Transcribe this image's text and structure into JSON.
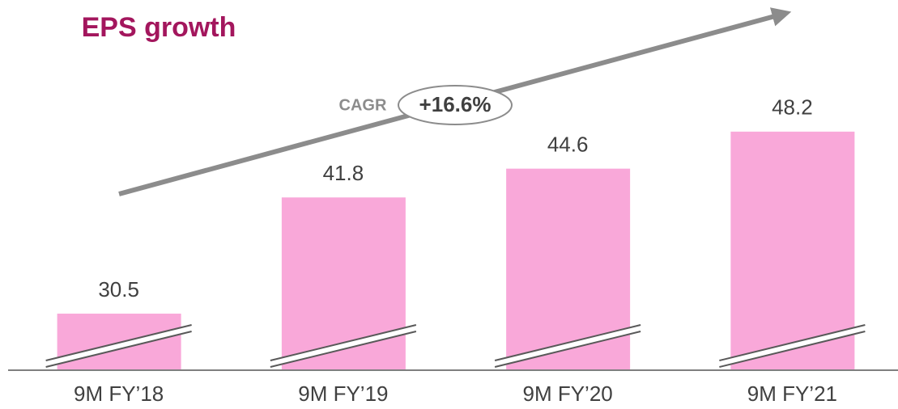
{
  "chart_data": {
    "type": "bar",
    "title": "EPS growth",
    "categories": [
      "9M FY’18",
      "9M FY’19",
      "9M FY’20",
      "9M FY’21"
    ],
    "values": [
      30.5,
      41.8,
      44.6,
      48.2
    ],
    "color": "#f9a8d9",
    "ylim": [
      25,
      61
    ],
    "annotations": {
      "cagr_label": "CAGR",
      "cagr_value": "+16.6%"
    }
  }
}
